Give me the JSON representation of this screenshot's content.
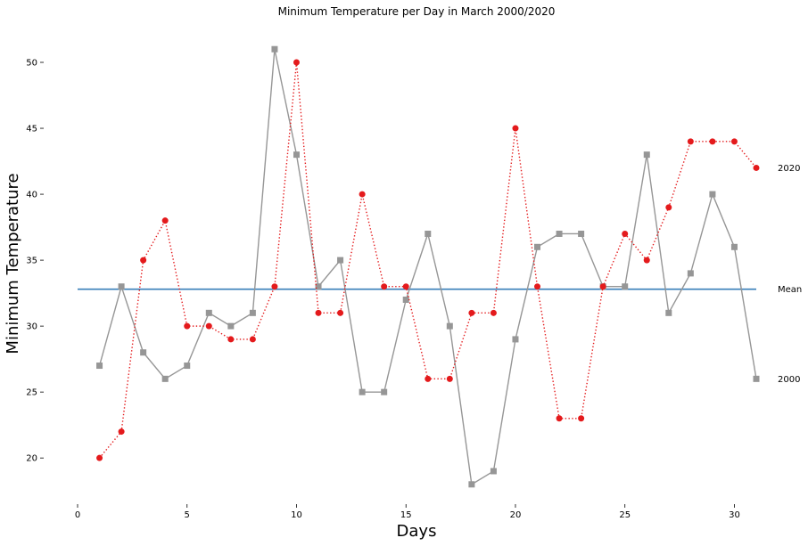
{
  "chart_data": {
    "type": "line",
    "title": "Minimum Temperature per Day in March 2000/2020",
    "xlabel": "Days",
    "ylabel": "Minimum Temperature",
    "xlim": [
      0,
      31
    ],
    "ylim": [
      16.5,
      52.5
    ],
    "x_ticks": [
      0,
      5,
      10,
      15,
      20,
      25,
      30
    ],
    "y_ticks": [
      20,
      25,
      30,
      35,
      40,
      45,
      50
    ],
    "grid": false,
    "x": [
      1,
      2,
      3,
      4,
      5,
      6,
      7,
      8,
      9,
      10,
      11,
      12,
      13,
      14,
      15,
      16,
      17,
      18,
      19,
      20,
      21,
      22,
      23,
      24,
      25,
      26,
      27,
      28,
      29,
      30,
      31
    ],
    "series": [
      {
        "name": "2000",
        "label": "2000",
        "color": "#969696",
        "style": "solid",
        "marker": "square",
        "values": [
          27,
          33,
          28,
          26,
          27,
          31,
          30,
          31,
          51,
          43,
          33,
          35,
          25,
          25,
          32,
          37,
          30,
          18,
          19,
          29,
          36,
          37,
          37,
          33,
          33,
          43,
          31,
          34,
          40,
          36,
          26
        ]
      },
      {
        "name": "2020",
        "label": "2020",
        "color": "#e41a1c",
        "style": "dotted",
        "marker": "circle",
        "values": [
          20,
          22,
          35,
          38,
          30,
          30,
          29,
          29,
          33,
          50,
          31,
          31,
          40,
          33,
          33,
          26,
          26,
          31,
          31,
          45,
          33,
          23,
          23,
          33,
          37,
          35,
          39,
          44,
          44,
          44,
          42
        ]
      }
    ],
    "reference_lines": [
      {
        "name": "Mean",
        "label": "Mean",
        "value": 32.8,
        "from_x": 0,
        "to_x": 31,
        "color": "#377eb8"
      }
    ]
  }
}
